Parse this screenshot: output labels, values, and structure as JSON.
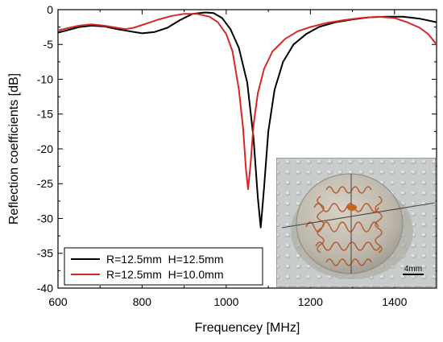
{
  "chart_data": {
    "type": "line",
    "xlabel": "Frequencey [MHz]",
    "ylabel": "Reflection coefficients [dB]",
    "xlim": [
      600,
      1500
    ],
    "ylim": [
      -40,
      0
    ],
    "x_ticks": [
      600,
      800,
      1000,
      1200,
      1400
    ],
    "y_ticks": [
      0,
      -5,
      -10,
      -15,
      -20,
      -25,
      -30,
      -35,
      -40
    ],
    "x_tick_labels": [
      "600",
      "800",
      "1000",
      "1200",
      "1400"
    ],
    "y_tick_labels": [
      "0",
      "-5",
      "-10",
      "-15",
      "-20",
      "-25",
      "-30",
      "-35",
      "-40"
    ],
    "legend_position": "bottom-left",
    "grid": false,
    "series": [
      {
        "name": "R=12.5mm  H=12.5mm",
        "color": "#000000",
        "points": [
          [
            600,
            -3.3
          ],
          [
            620,
            -3.0
          ],
          [
            650,
            -2.5
          ],
          [
            680,
            -2.3
          ],
          [
            710,
            -2.4
          ],
          [
            740,
            -2.8
          ],
          [
            770,
            -3.1
          ],
          [
            800,
            -3.4
          ],
          [
            830,
            -3.2
          ],
          [
            860,
            -2.6
          ],
          [
            890,
            -1.5
          ],
          [
            920,
            -0.6
          ],
          [
            950,
            -0.4
          ],
          [
            970,
            -0.5
          ],
          [
            990,
            -1.2
          ],
          [
            1010,
            -2.8
          ],
          [
            1030,
            -5.5
          ],
          [
            1050,
            -10.5
          ],
          [
            1065,
            -18.5
          ],
          [
            1075,
            -27.0
          ],
          [
            1082,
            -31.3
          ],
          [
            1090,
            -25.5
          ],
          [
            1100,
            -17.5
          ],
          [
            1115,
            -11.5
          ],
          [
            1135,
            -7.5
          ],
          [
            1160,
            -5.0
          ],
          [
            1190,
            -3.5
          ],
          [
            1220,
            -2.5
          ],
          [
            1260,
            -1.8
          ],
          [
            1300,
            -1.4
          ],
          [
            1340,
            -1.1
          ],
          [
            1380,
            -1.0
          ],
          [
            1420,
            -1.0
          ],
          [
            1460,
            -1.3
          ],
          [
            1500,
            -1.8
          ]
        ]
      },
      {
        "name": "R=12.5mm  H=10.0mm",
        "color": "#d62728",
        "points": [
          [
            600,
            -3.0
          ],
          [
            620,
            -2.7
          ],
          [
            650,
            -2.3
          ],
          [
            680,
            -2.1
          ],
          [
            710,
            -2.3
          ],
          [
            740,
            -2.6
          ],
          [
            760,
            -2.8
          ],
          [
            780,
            -2.6
          ],
          [
            810,
            -2.0
          ],
          [
            840,
            -1.4
          ],
          [
            870,
            -0.9
          ],
          [
            900,
            -0.6
          ],
          [
            930,
            -0.6
          ],
          [
            960,
            -1.0
          ],
          [
            980,
            -1.8
          ],
          [
            1000,
            -3.5
          ],
          [
            1015,
            -6.0
          ],
          [
            1030,
            -11.5
          ],
          [
            1040,
            -17.0
          ],
          [
            1047,
            -23.0
          ],
          [
            1052,
            -25.8
          ],
          [
            1058,
            -22.0
          ],
          [
            1065,
            -16.5
          ],
          [
            1075,
            -12.0
          ],
          [
            1090,
            -8.5
          ],
          [
            1110,
            -6.0
          ],
          [
            1140,
            -4.2
          ],
          [
            1170,
            -3.1
          ],
          [
            1200,
            -2.5
          ],
          [
            1240,
            -1.9
          ],
          [
            1280,
            -1.5
          ],
          [
            1320,
            -1.2
          ],
          [
            1360,
            -1.0
          ],
          [
            1400,
            -1.2
          ],
          [
            1430,
            -1.8
          ],
          [
            1460,
            -2.6
          ],
          [
            1480,
            -3.5
          ],
          [
            1500,
            -5.0
          ]
        ]
      }
    ],
    "inset": {
      "scale_bar_label": "4mm"
    }
  }
}
